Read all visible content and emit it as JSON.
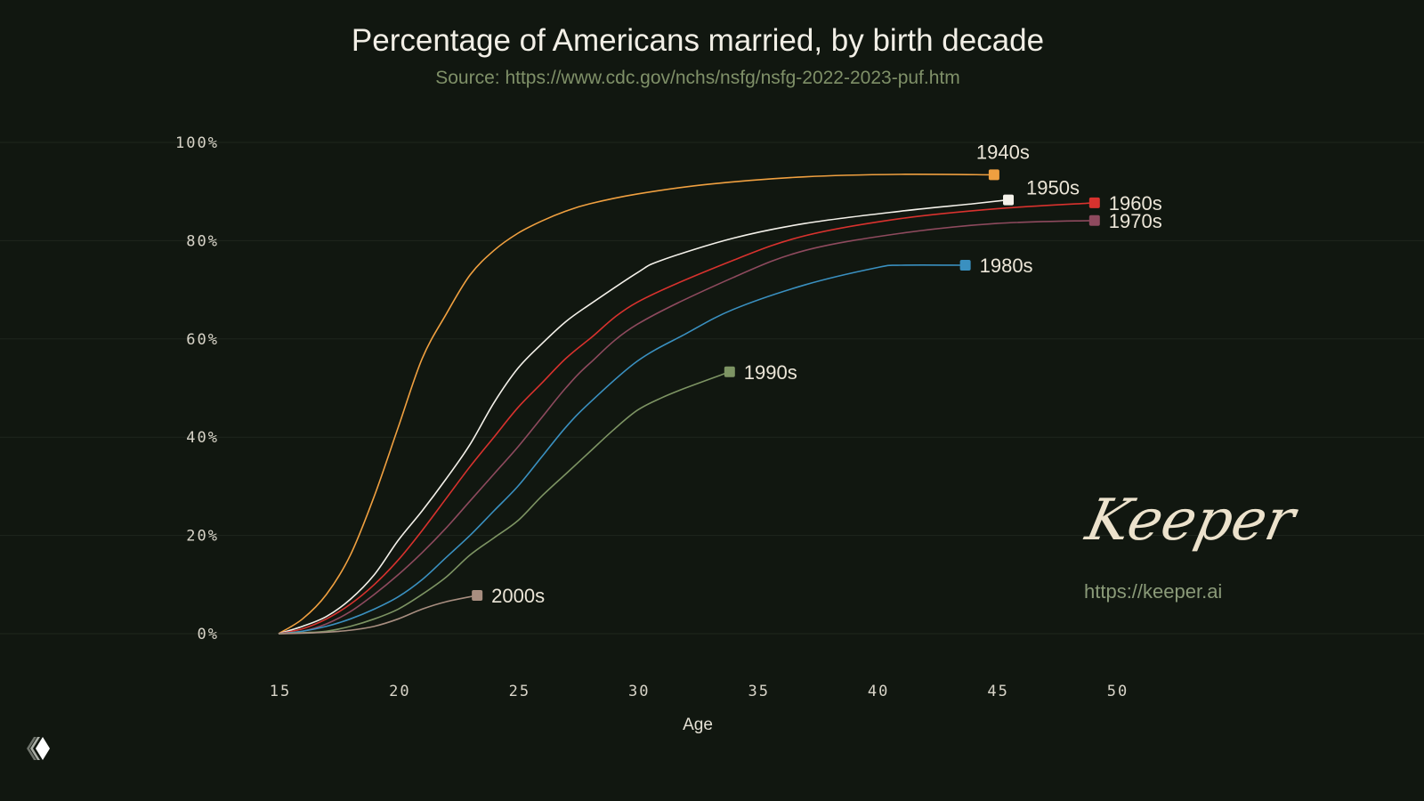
{
  "chart_data": {
    "type": "line",
    "title": "Percentage of Americans married, by birth decade",
    "subtitle": "Source: https://www.cdc.gov/nchs/nsfg/nsfg-2022-2023-puf.htm",
    "xlabel": "Age",
    "ylabel": "",
    "xlim": [
      15,
      50
    ],
    "ylim": [
      0,
      100
    ],
    "xticks": [
      "15",
      "20",
      "25",
      "30",
      "35",
      "40",
      "45",
      "50"
    ],
    "yticks": [
      "0%",
      "20%",
      "40%",
      "60%",
      "80%",
      "100%"
    ],
    "grid": "horizontal",
    "series": [
      {
        "name": "1940s",
        "color": "#f0a040",
        "x": [
          15,
          16,
          17,
          18,
          19,
          20,
          21,
          22,
          23,
          24,
          25,
          26,
          27,
          28,
          30,
          33,
          37,
          41,
          44.9
        ],
        "y": [
          0,
          3,
          8,
          16,
          28,
          42,
          56,
          65,
          73,
          78,
          81.5,
          84,
          86,
          87.5,
          89.5,
          91.5,
          93,
          93.5,
          93.4
        ]
      },
      {
        "name": "1950s",
        "color": "#f4f1ea",
        "x": [
          15,
          16,
          17,
          18,
          19,
          20,
          21,
          22,
          23,
          24,
          25,
          26,
          27,
          28,
          30,
          31,
          34,
          37,
          41,
          44,
          45.5
        ],
        "y": [
          0,
          1.5,
          3.5,
          7,
          12,
          19,
          25,
          31.5,
          38.5,
          47,
          54,
          59,
          63.5,
          67,
          73.5,
          76,
          80.5,
          83.5,
          86,
          87.5,
          88.3
        ]
      },
      {
        "name": "1960s",
        "color": "#d8322e",
        "x": [
          15,
          16,
          17,
          18,
          19,
          20,
          21,
          22,
          23,
          24,
          25,
          26,
          27,
          28,
          30,
          34,
          37,
          41,
          45,
          49.1
        ],
        "y": [
          0,
          1,
          3,
          6,
          10,
          15,
          21,
          27.5,
          34,
          40,
          46,
          51,
          56,
          60,
          67.5,
          76,
          81,
          84.5,
          86.5,
          87.7
        ]
      },
      {
        "name": "1970s",
        "color": "#8e4a5e",
        "x": [
          15,
          16,
          17,
          18,
          19,
          20,
          21,
          22,
          23,
          24,
          25,
          26,
          27,
          28,
          30,
          34,
          37,
          41,
          45,
          49.1
        ],
        "y": [
          0,
          0.5,
          2,
          4.5,
          8,
          12,
          16.5,
          21.5,
          27,
          32.5,
          38,
          44,
          50,
          55,
          63,
          72.5,
          78,
          81.5,
          83.5,
          84.1
        ]
      },
      {
        "name": "1980s",
        "color": "#3a90c0",
        "x": [
          15,
          16,
          17,
          18,
          19,
          20,
          21,
          22,
          23,
          24,
          25,
          26,
          27,
          28,
          30,
          32,
          34,
          37,
          40,
          41,
          43.7
        ],
        "y": [
          0,
          0.5,
          1.5,
          3,
          5,
          7.5,
          11,
          15.5,
          20,
          25,
          30,
          36,
          42,
          47,
          55.5,
          61,
          66,
          71,
          74.5,
          75,
          75
        ]
      },
      {
        "name": "1990s",
        "color": "#7d9463",
        "x": [
          15,
          16,
          17,
          18,
          19,
          20,
          21,
          22,
          23,
          24,
          25,
          26,
          27,
          28,
          29,
          30,
          31,
          32,
          33.85
        ],
        "y": [
          0,
          0.2,
          0.5,
          1.5,
          3,
          5,
          8,
          11.5,
          16,
          19.5,
          23,
          28,
          32.5,
          37,
          41.5,
          45.5,
          48,
          50,
          53.3
        ]
      },
      {
        "name": "2000s",
        "color": "#a88e80",
        "x": [
          15,
          16,
          17,
          18,
          19,
          20,
          21,
          22,
          23.3
        ],
        "y": [
          0,
          0.1,
          0.3,
          0.7,
          1.5,
          3,
          5,
          6.5,
          7.8
        ]
      }
    ]
  },
  "watermark": {
    "brand": "Keeper",
    "url": "https://keeper.ai"
  }
}
